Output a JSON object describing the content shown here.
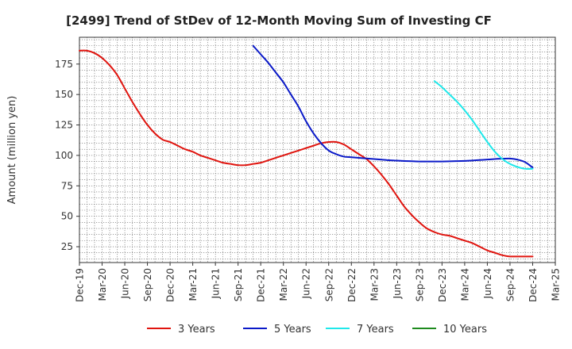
{
  "chart_data": {
    "type": "line",
    "title": "[2499]  Trend of StDev of 12-Month Moving Sum of Investing CF",
    "xlabel": "",
    "ylabel": "Amount (million yen)",
    "ylim": [
      12,
      197
    ],
    "yticks": [
      25,
      50,
      75,
      100,
      125,
      150,
      175
    ],
    "x_range": [
      "2019-12",
      "2025-03"
    ],
    "x_ticks": [
      "Dec-19",
      "Mar-20",
      "Jun-20",
      "Sep-20",
      "Dec-20",
      "Mar-21",
      "Jun-21",
      "Sep-21",
      "Dec-21",
      "Mar-22",
      "Jun-22",
      "Sep-22",
      "Dec-22",
      "Mar-23",
      "Jun-23",
      "Sep-23",
      "Dec-23",
      "Mar-24",
      "Jun-24",
      "Sep-24",
      "Dec-24",
      "Mar-25"
    ],
    "grid": true,
    "legend_position": "bottom",
    "series": [
      {
        "name": "3 Years",
        "color": "#e0140e",
        "points": [
          [
            "2019-12",
            186
          ],
          [
            "2020-01",
            186
          ],
          [
            "2020-02",
            184
          ],
          [
            "2020-03",
            180
          ],
          [
            "2020-04",
            174
          ],
          [
            "2020-05",
            166
          ],
          [
            "2020-06",
            155
          ],
          [
            "2020-07",
            144
          ],
          [
            "2020-08",
            134
          ],
          [
            "2020-09",
            125
          ],
          [
            "2020-10",
            118
          ],
          [
            "2020-11",
            113
          ],
          [
            "2020-12",
            111
          ],
          [
            "2021-01",
            108
          ],
          [
            "2021-02",
            105
          ],
          [
            "2021-03",
            103
          ],
          [
            "2021-04",
            100
          ],
          [
            "2021-05",
            98
          ],
          [
            "2021-06",
            96
          ],
          [
            "2021-07",
            94
          ],
          [
            "2021-08",
            93
          ],
          [
            "2021-09",
            92
          ],
          [
            "2021-10",
            92
          ],
          [
            "2021-11",
            93
          ],
          [
            "2021-12",
            94
          ],
          [
            "2022-01",
            96
          ],
          [
            "2022-02",
            98
          ],
          [
            "2022-03",
            100
          ],
          [
            "2022-04",
            102
          ],
          [
            "2022-05",
            104
          ],
          [
            "2022-06",
            106
          ],
          [
            "2022-07",
            108
          ],
          [
            "2022-08",
            110
          ],
          [
            "2022-09",
            111
          ],
          [
            "2022-10",
            111
          ],
          [
            "2022-11",
            109
          ],
          [
            "2022-12",
            105
          ],
          [
            "2023-01",
            101
          ],
          [
            "2023-02",
            97
          ],
          [
            "2023-03",
            91
          ],
          [
            "2023-04",
            84
          ],
          [
            "2023-05",
            76
          ],
          [
            "2023-06",
            67
          ],
          [
            "2023-07",
            58
          ],
          [
            "2023-08",
            51
          ],
          [
            "2023-09",
            45
          ],
          [
            "2023-10",
            40
          ],
          [
            "2023-11",
            37
          ],
          [
            "2023-12",
            35
          ],
          [
            "2024-01",
            34
          ],
          [
            "2024-02",
            32
          ],
          [
            "2024-03",
            30
          ],
          [
            "2024-04",
            28
          ],
          [
            "2024-05",
            25
          ],
          [
            "2024-06",
            22
          ],
          [
            "2024-07",
            20
          ],
          [
            "2024-08",
            18
          ],
          [
            "2024-09",
            17
          ],
          [
            "2024-10",
            17
          ],
          [
            "2024-11",
            17
          ],
          [
            "2024-12",
            17
          ]
        ]
      },
      {
        "name": "5 Years",
        "color": "#0a19c8",
        "points": [
          [
            "2021-11",
            190
          ],
          [
            "2021-12",
            183
          ],
          [
            "2022-01",
            176
          ],
          [
            "2022-02",
            168
          ],
          [
            "2022-03",
            160
          ],
          [
            "2022-04",
            150
          ],
          [
            "2022-05",
            140
          ],
          [
            "2022-06",
            128
          ],
          [
            "2022-07",
            118
          ],
          [
            "2022-08",
            110
          ],
          [
            "2022-09",
            104
          ],
          [
            "2022-10",
            101
          ],
          [
            "2022-11",
            99
          ],
          [
            "2022-12",
            98.5
          ],
          [
            "2023-01",
            98
          ],
          [
            "2023-02",
            97.5
          ],
          [
            "2023-03",
            97
          ],
          [
            "2023-04",
            96.5
          ],
          [
            "2023-05",
            96
          ],
          [
            "2023-06",
            95.7
          ],
          [
            "2023-07",
            95.4
          ],
          [
            "2023-08",
            95.2
          ],
          [
            "2023-09",
            95
          ],
          [
            "2023-10",
            95
          ],
          [
            "2023-11",
            95
          ],
          [
            "2023-12",
            95
          ],
          [
            "2024-01",
            95.1
          ],
          [
            "2024-02",
            95.3
          ],
          [
            "2024-03",
            95.5
          ],
          [
            "2024-04",
            95.8
          ],
          [
            "2024-05",
            96.2
          ],
          [
            "2024-06",
            96.6
          ],
          [
            "2024-07",
            97
          ],
          [
            "2024-08",
            97.3
          ],
          [
            "2024-09",
            97.4
          ],
          [
            "2024-10",
            96.5
          ],
          [
            "2024-11",
            94.5
          ],
          [
            "2024-12",
            90
          ]
        ]
      },
      {
        "name": "7 Years",
        "color": "#1fe8ea",
        "points": [
          [
            "2023-11",
            161
          ],
          [
            "2023-12",
            156
          ],
          [
            "2024-01",
            150
          ],
          [
            "2024-02",
            144
          ],
          [
            "2024-03",
            137
          ],
          [
            "2024-04",
            129
          ],
          [
            "2024-05",
            120
          ],
          [
            "2024-06",
            111
          ],
          [
            "2024-07",
            103
          ],
          [
            "2024-08",
            97
          ],
          [
            "2024-09",
            93
          ],
          [
            "2024-10",
            90.5
          ],
          [
            "2024-11",
            89
          ],
          [
            "2024-12",
            89
          ]
        ]
      },
      {
        "name": "10 Years",
        "color": "#1d8a1d",
        "points": []
      }
    ]
  }
}
